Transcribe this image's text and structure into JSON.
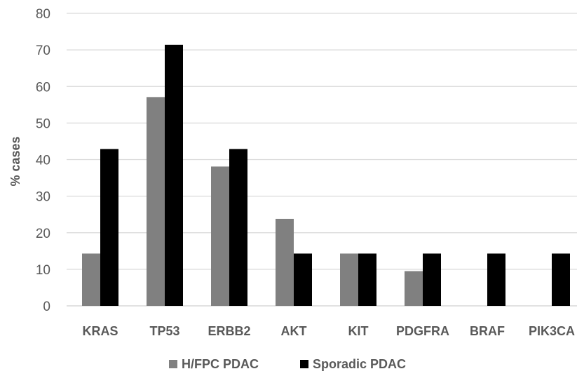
{
  "chart_data": {
    "type": "bar",
    "categories": [
      "KRAS",
      "TP53",
      "ERBB2",
      "AKT",
      "KIT",
      "PDGFRA",
      "BRAF",
      "PIK3CA"
    ],
    "series": [
      {
        "name": "H/FPC PDAC",
        "color": "#808080",
        "values": [
          14.3,
          57.1,
          38.1,
          23.8,
          14.3,
          9.5,
          0,
          0
        ]
      },
      {
        "name": "Sporadic PDAC",
        "color": "#000000",
        "values": [
          42.9,
          71.4,
          42.9,
          14.3,
          14.3,
          14.3,
          14.3,
          14.3
        ]
      }
    ],
    "ylabel": "% cases",
    "xlabel": "",
    "ylim": [
      0,
      80
    ],
    "yticks": [
      0,
      10,
      20,
      30,
      40,
      50,
      60,
      70,
      80
    ],
    "grid": true,
    "legend_position": "bottom"
  }
}
